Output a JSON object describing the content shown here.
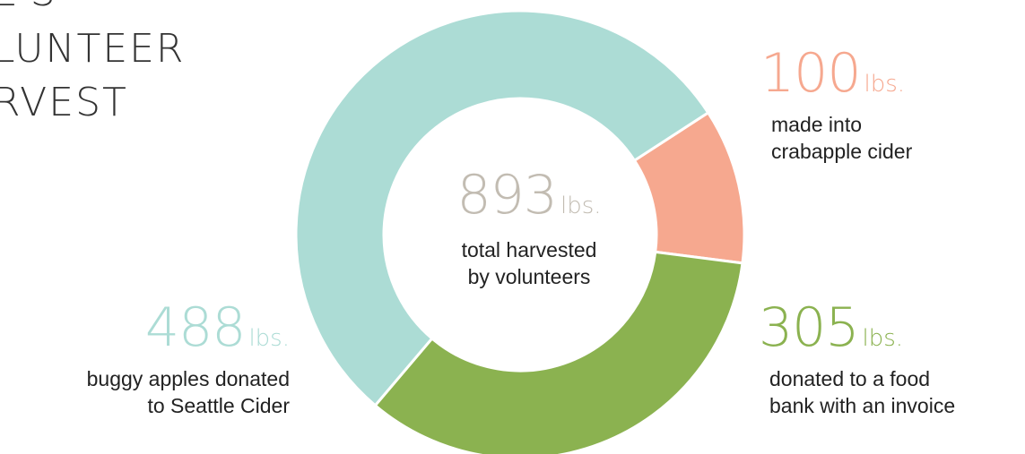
{
  "title": {
    "top": "ES",
    "line1": "LUNTEER",
    "line2": "RVEST"
  },
  "chart_data": {
    "type": "pie",
    "style": "donut",
    "total": {
      "value": "893",
      "unit": "lbs.",
      "label_line1": "total harvested",
      "label_line2": "by volunteers",
      "color": "#c2bcb2"
    },
    "slices": [
      {
        "value": 100,
        "display": "100",
        "unit": "lbs.",
        "label_line1": "made into",
        "label_line2": "crabapple cider",
        "color": "#f6a88f"
      },
      {
        "value": 305,
        "display": "305",
        "unit": "lbs.",
        "label_line1": "donated to a food",
        "label_line2": "bank with an invoice",
        "color": "#8bb250"
      },
      {
        "value": 488,
        "display": "488",
        "unit": "lbs.",
        "label_line1": "buggy apples donated",
        "label_line2": "to Seattle Cider",
        "color": "#acdcd5"
      }
    ]
  }
}
